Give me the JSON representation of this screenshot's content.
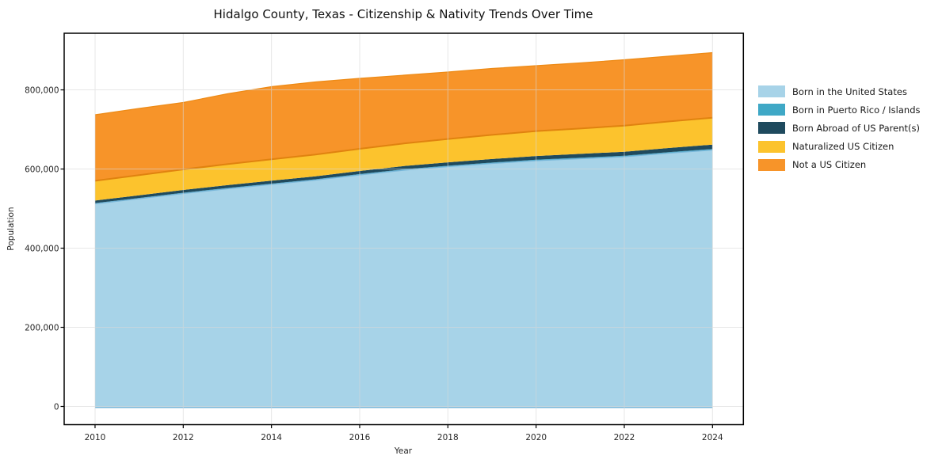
{
  "title": "Hidalgo County, Texas - Citizenship & Nativity Trends Over Time",
  "chart_data": {
    "type": "area",
    "stacked": true,
    "title": "Hidalgo County, Texas - Citizenship & Nativity Trends Over Time",
    "xlabel": "Year",
    "ylabel": "Population",
    "grid": true,
    "legend_position": "right-outside",
    "x": [
      2010,
      2011,
      2012,
      2013,
      2014,
      2015,
      2016,
      2017,
      2018,
      2019,
      2020,
      2021,
      2022,
      2023,
      2024
    ],
    "x_ticks": [
      2010,
      2012,
      2014,
      2016,
      2018,
      2020,
      2022,
      2024
    ],
    "y_ticks": [
      {
        "value": 0,
        "label": "0"
      },
      {
        "value": 200000,
        "label": "200,000"
      },
      {
        "value": 400000,
        "label": "400,000"
      },
      {
        "value": 600000,
        "label": "600,000"
      },
      {
        "value": 800000,
        "label": "800,000"
      }
    ],
    "xlim": [
      2009.3,
      2024.7
    ],
    "ylim": [
      -46000,
      943100
    ],
    "series": [
      {
        "name": "Born in the United States",
        "color": "#A7D3E8",
        "edge": "#79B7DA",
        "values": [
          512000,
          525000,
          538000,
          550000,
          561000,
          572000,
          585000,
          597000,
          606000,
          614000,
          621000,
          626000,
          631000,
          640000,
          648000
        ]
      },
      {
        "name": "Born in Puerto Rico / Islands",
        "color": "#3FA8C6",
        "edge": "#2F8FAD",
        "values": [
          1800,
          1900,
          2000,
          2000,
          2100,
          2100,
          2200,
          2200,
          2300,
          2300,
          2400,
          2400,
          2500,
          2500,
          2600
        ]
      },
      {
        "name": "Born Abroad of US Parent(s)",
        "color": "#1F4A5E",
        "edge": "#16394A",
        "values": [
          6500,
          6800,
          7000,
          7200,
          7400,
          7600,
          7800,
          8200,
          8600,
          9000,
          9400,
          9800,
          10200,
          10600,
          11000
        ]
      },
      {
        "name": "Naturalized US Citizen",
        "color": "#FCC32D",
        "edge": "#E0820F",
        "values": [
          50000,
          51000,
          52000,
          53000,
          54000,
          55000,
          56000,
          57000,
          59000,
          61000,
          63000,
          64000,
          66000,
          67000,
          68000
        ]
      },
      {
        "name": "Not a US Citizen",
        "color": "#F79429",
        "edge": "#ED8A15",
        "values": [
          166700,
          168300,
          169000,
          177800,
          183500,
          183300,
          178000,
          172600,
          169100,
          167700,
          165200,
          165800,
          166300,
          164900,
          164400
        ]
      }
    ],
    "style": {
      "grid_color": "#D8D8D8",
      "spine_color": "#000000",
      "tick_text_color": "#262626"
    }
  }
}
